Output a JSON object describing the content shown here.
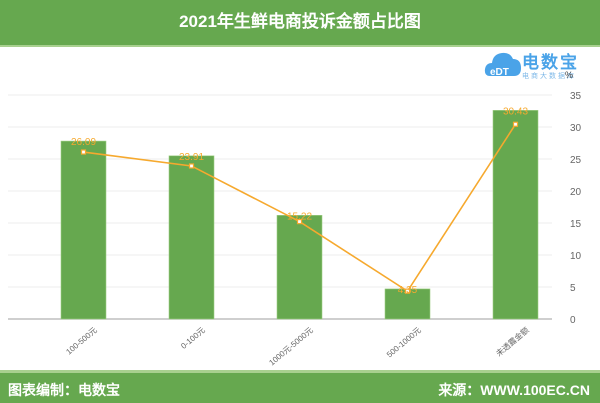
{
  "header": {
    "title": "2021年生鲜电商投诉金额占比图"
  },
  "logo": {
    "brand": "电数宝",
    "badge": "eDT",
    "subtitle": "电商大数据库"
  },
  "axis": {
    "unit": "%"
  },
  "footer": {
    "left": "图表编制：电数宝",
    "right": "来源：WWW.100EC.CN"
  },
  "colors": {
    "header": "#66a84f",
    "bar": "#66a84f",
    "line": "#f6a92e",
    "label": "#f6a92e"
  },
  "chart_data": {
    "type": "bar",
    "title": "2021年生鲜电商投诉金额占比图",
    "xlabel": "",
    "ylabel": "%",
    "ylim": [
      0,
      35
    ],
    "yticks": [
      0,
      5,
      10,
      15,
      20,
      25,
      30,
      35
    ],
    "grid": true,
    "legend": "none",
    "categories": [
      "100-500元",
      "0-100元",
      "1000元-5000元",
      "500-1000元",
      "未透露金额"
    ],
    "series": [
      {
        "name": "bar",
        "type": "bar",
        "values": [
          27.8,
          25.5,
          16.2,
          4.7,
          32.6
        ]
      },
      {
        "name": "line",
        "type": "line",
        "values": [
          26.09,
          23.91,
          15.22,
          4.35,
          30.43
        ],
        "labels": [
          "26.09",
          "23.91",
          "15.22",
          "4.35",
          "30.43"
        ]
      }
    ]
  }
}
